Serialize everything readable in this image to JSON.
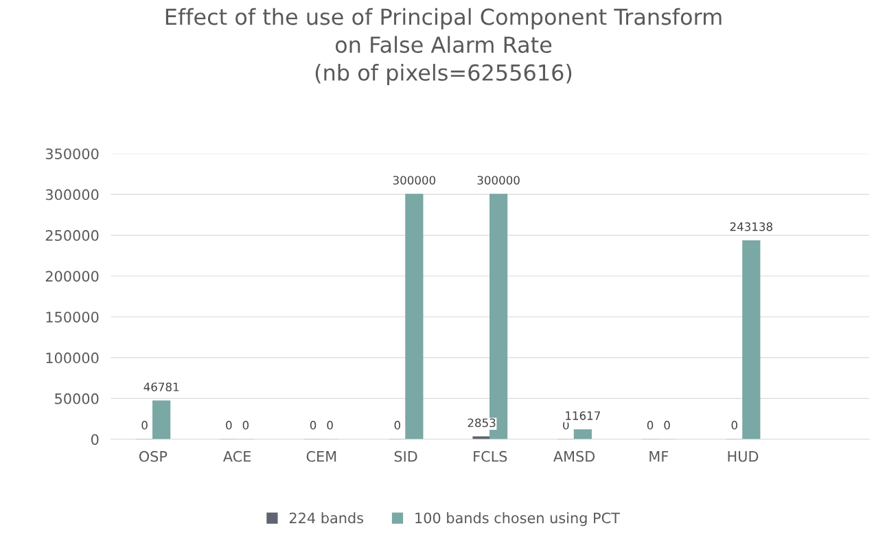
{
  "chart_data": {
    "type": "bar",
    "title": "Effect of the use of Principal Component Transform\non False Alarm Rate\n(nb of pixels=6255616)",
    "categories": [
      "OSP",
      "ACE",
      "CEM",
      "SID",
      "FCLS",
      "AMSD",
      "MF",
      "HUD",
      null
    ],
    "series": [
      {
        "name": "224 bands",
        "color": "#5f6470",
        "values": [
          0,
          0,
          0,
          0,
          2853,
          0,
          0,
          0,
          null
        ]
      },
      {
        "name": "100 bands chosen using PCT",
        "color": "#7aa8a4",
        "values": [
          46781,
          0,
          0,
          300000,
          300000,
          11617,
          0,
          243138,
          null
        ]
      }
    ],
    "ylim": [
      0,
      350000
    ],
    "yticks": [
      0,
      50000,
      100000,
      150000,
      200000,
      250000,
      300000,
      350000
    ],
    "grid": "y",
    "legend": "bottom",
    "data_labels": true
  }
}
